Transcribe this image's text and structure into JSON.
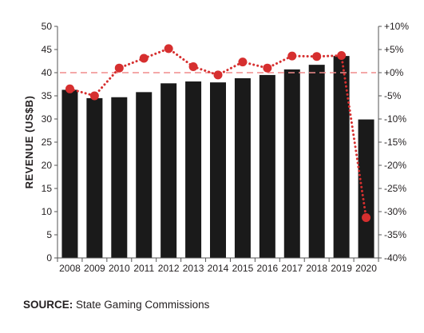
{
  "chart_data": {
    "type": "bar",
    "categories": [
      "2008",
      "2009",
      "2010",
      "2011",
      "2012",
      "2013",
      "2014",
      "2015",
      "2016",
      "2017",
      "2018",
      "2019",
      "2020"
    ],
    "series": [
      {
        "values": [
          36.3,
          34.5,
          34.7,
          35.8,
          37.7,
          38.1,
          37.9,
          38.8,
          39.5,
          40.7,
          41.7,
          43.6,
          29.9
        ],
        "color": "#1a1a1a",
        "axis": "left",
        "kind": "bar"
      },
      {
        "values": [
          -3.5,
          -5.0,
          1.0,
          3.1,
          5.2,
          1.3,
          -0.5,
          2.3,
          1.0,
          3.6,
          3.5,
          3.7,
          -31.3
        ],
        "color": "#d62f2f",
        "axis": "right",
        "kind": "line-dotted-markers"
      }
    ],
    "reference_line": {
      "y2": 0,
      "color": "#f08c8c",
      "style": "dashed"
    },
    "ylabel": "REVENUE (US$B)",
    "xlabel": "",
    "ylim": [
      0,
      50
    ],
    "y_ticks": [
      "0",
      "5",
      "10",
      "15",
      "20",
      "25",
      "30",
      "35",
      "40",
      "45",
      "50"
    ],
    "y2lim": [
      -40,
      10
    ],
    "y2_ticks": [
      "-40%",
      "-35%",
      "-30%",
      "-25%",
      "-20%",
      "-15%",
      "-10%",
      "-5%",
      "+0%",
      "+5%",
      "+10%"
    ],
    "grid": false,
    "legend": "none"
  },
  "source": {
    "label": "SOURCE:",
    "text": "State Gaming Commissions"
  }
}
